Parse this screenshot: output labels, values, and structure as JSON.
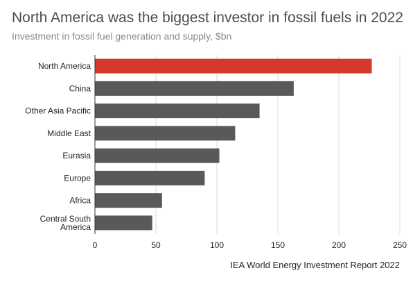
{
  "chart_data": {
    "type": "bar",
    "orientation": "horizontal",
    "title": "North America was the biggest investor in fossil fuels in 2022",
    "subtitle": "Investment in fossil fuel generation and supply, $bn",
    "source": "IEA World Energy Investment Report 2022",
    "categories": [
      "North America",
      "China",
      "Other Asia Pacific",
      "Middle East",
      "Eurasia",
      "Europe",
      "Africa",
      "Central South America"
    ],
    "values": [
      227,
      163,
      135,
      115,
      102,
      90,
      55,
      47
    ],
    "xlim": [
      0,
      250
    ],
    "xticks": [
      0,
      50,
      100,
      150,
      200,
      250
    ],
    "grid": true,
    "highlight_color": "#d33a2c",
    "bar_color": "#595959"
  }
}
